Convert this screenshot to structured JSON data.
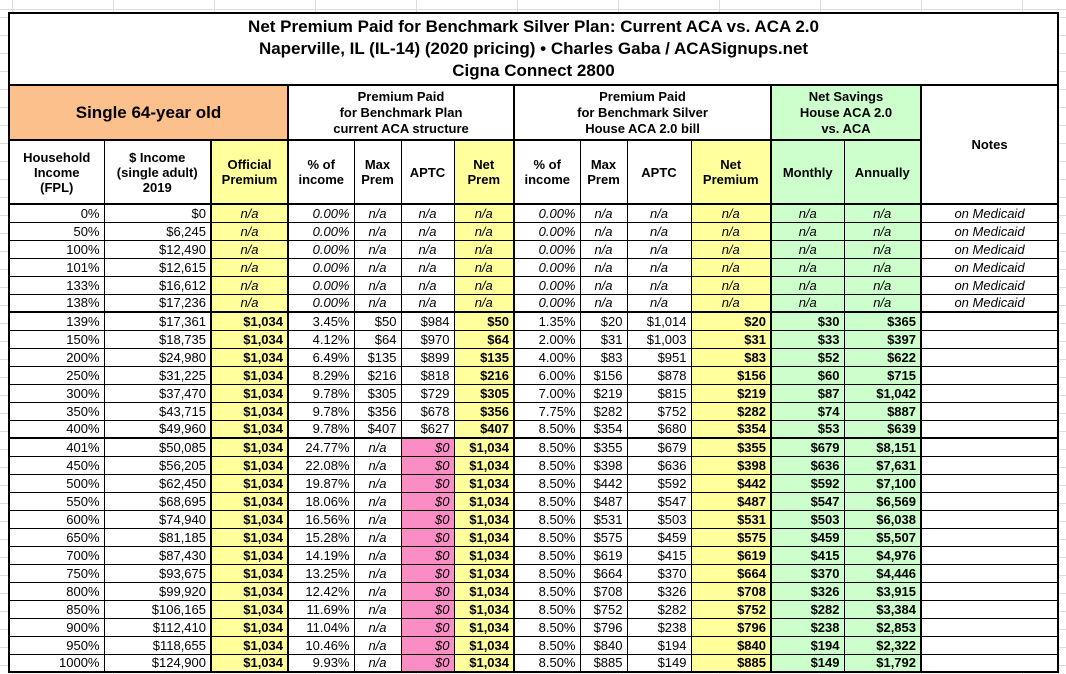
{
  "sheet": {
    "title_lines": [
      "Net Premium Paid for Benchmark Silver Plan: Current ACA vs. ACA 2.0",
      "Naperville, IL (IL-14) (2020 pricing) • Charles Gaba / ACASignups.net",
      "Cigna Connect 2800"
    ]
  },
  "groups": {
    "subject": "Single 64-year old",
    "current_aca": "Premium Paid\nfor Benchmark Plan\ncurrent ACA structure",
    "house_aca20": "Premium Paid\nfor Benchmark Silver\nHouse ACA 2.0 bill",
    "net_savings": "Net Savings\nHouse ACA 2.0\nvs. ACA"
  },
  "columns": {
    "fpl": "Household\nIncome\n(FPL)",
    "income": "$ Income\n(single adult)\n2019",
    "official": "Official\nPremium",
    "pct_income": "% of\nincome",
    "max_prem": "Max\nPrem",
    "aptc": "APTC",
    "net_prem": "Net\nPrem",
    "net_premium": "Net\nPremium",
    "monthly": "Monthly",
    "annually": "Annually",
    "notes": "Notes"
  },
  "rows": [
    {
      "fpl": "0%",
      "income": "$0",
      "official": "n/a",
      "c_pct": "0.00%",
      "c_max": "n/a",
      "c_aptc": "n/a",
      "c_net": "n/a",
      "h_pct": "0.00%",
      "h_max": "n/a",
      "h_aptc": "n/a",
      "h_net": "n/a",
      "s_m": "n/a",
      "s_a": "n/a",
      "note": "on Medicaid"
    },
    {
      "fpl": "50%",
      "income": "$6,245",
      "official": "n/a",
      "c_pct": "0.00%",
      "c_max": "n/a",
      "c_aptc": "n/a",
      "c_net": "n/a",
      "h_pct": "0.00%",
      "h_max": "n/a",
      "h_aptc": "n/a",
      "h_net": "n/a",
      "s_m": "n/a",
      "s_a": "n/a",
      "note": "on Medicaid"
    },
    {
      "fpl": "100%",
      "income": "$12,490",
      "official": "n/a",
      "c_pct": "0.00%",
      "c_max": "n/a",
      "c_aptc": "n/a",
      "c_net": "n/a",
      "h_pct": "0.00%",
      "h_max": "n/a",
      "h_aptc": "n/a",
      "h_net": "n/a",
      "s_m": "n/a",
      "s_a": "n/a",
      "note": "on Medicaid"
    },
    {
      "fpl": "101%",
      "income": "$12,615",
      "official": "n/a",
      "c_pct": "0.00%",
      "c_max": "n/a",
      "c_aptc": "n/a",
      "c_net": "n/a",
      "h_pct": "0.00%",
      "h_max": "n/a",
      "h_aptc": "n/a",
      "h_net": "n/a",
      "s_m": "n/a",
      "s_a": "n/a",
      "note": "on Medicaid"
    },
    {
      "fpl": "133%",
      "income": "$16,612",
      "official": "n/a",
      "c_pct": "0.00%",
      "c_max": "n/a",
      "c_aptc": "n/a",
      "c_net": "n/a",
      "h_pct": "0.00%",
      "h_max": "n/a",
      "h_aptc": "n/a",
      "h_net": "n/a",
      "s_m": "n/a",
      "s_a": "n/a",
      "note": "on Medicaid"
    },
    {
      "fpl": "138%",
      "income": "$17,236",
      "official": "n/a",
      "c_pct": "0.00%",
      "c_max": "n/a",
      "c_aptc": "n/a",
      "c_net": "n/a",
      "h_pct": "0.00%",
      "h_max": "n/a",
      "h_aptc": "n/a",
      "h_net": "n/a",
      "s_m": "n/a",
      "s_a": "n/a",
      "note": "on Medicaid"
    },
    {
      "fpl": "139%",
      "income": "$17,361",
      "official": "$1,034",
      "c_pct": "3.45%",
      "c_max": "$50",
      "c_aptc": "$984",
      "c_net": "$50",
      "h_pct": "1.35%",
      "h_max": "$20",
      "h_aptc": "$1,014",
      "h_net": "$20",
      "s_m": "$30",
      "s_a": "$365",
      "note": ""
    },
    {
      "fpl": "150%",
      "income": "$18,735",
      "official": "$1,034",
      "c_pct": "4.12%",
      "c_max": "$64",
      "c_aptc": "$970",
      "c_net": "$64",
      "h_pct": "2.00%",
      "h_max": "$31",
      "h_aptc": "$1,003",
      "h_net": "$31",
      "s_m": "$33",
      "s_a": "$397",
      "note": ""
    },
    {
      "fpl": "200%",
      "income": "$24,980",
      "official": "$1,034",
      "c_pct": "6.49%",
      "c_max": "$135",
      "c_aptc": "$899",
      "c_net": "$135",
      "h_pct": "4.00%",
      "h_max": "$83",
      "h_aptc": "$951",
      "h_net": "$83",
      "s_m": "$52",
      "s_a": "$622",
      "note": ""
    },
    {
      "fpl": "250%",
      "income": "$31,225",
      "official": "$1,034",
      "c_pct": "8.29%",
      "c_max": "$216",
      "c_aptc": "$818",
      "c_net": "$216",
      "h_pct": "6.00%",
      "h_max": "$156",
      "h_aptc": "$878",
      "h_net": "$156",
      "s_m": "$60",
      "s_a": "$715",
      "note": ""
    },
    {
      "fpl": "300%",
      "income": "$37,470",
      "official": "$1,034",
      "c_pct": "9.78%",
      "c_max": "$305",
      "c_aptc": "$729",
      "c_net": "$305",
      "h_pct": "7.00%",
      "h_max": "$219",
      "h_aptc": "$815",
      "h_net": "$219",
      "s_m": "$87",
      "s_a": "$1,042",
      "note": ""
    },
    {
      "fpl": "350%",
      "income": "$43,715",
      "official": "$1,034",
      "c_pct": "9.78%",
      "c_max": "$356",
      "c_aptc": "$678",
      "c_net": "$356",
      "h_pct": "7.75%",
      "h_max": "$282",
      "h_aptc": "$752",
      "h_net": "$282",
      "s_m": "$74",
      "s_a": "$887",
      "note": ""
    },
    {
      "fpl": "400%",
      "income": "$49,960",
      "official": "$1,034",
      "c_pct": "9.78%",
      "c_max": "$407",
      "c_aptc": "$627",
      "c_net": "$407",
      "h_pct": "8.50%",
      "h_max": "$354",
      "h_aptc": "$680",
      "h_net": "$354",
      "s_m": "$53",
      "s_a": "$639",
      "note": ""
    },
    {
      "fpl": "401%",
      "income": "$50,085",
      "official": "$1,034",
      "c_pct": "24.77%",
      "c_max": "n/a",
      "c_aptc": "$0",
      "c_net": "$1,034",
      "h_pct": "8.50%",
      "h_max": "$355",
      "h_aptc": "$679",
      "h_net": "$355",
      "s_m": "$679",
      "s_a": "$8,151",
      "note": ""
    },
    {
      "fpl": "450%",
      "income": "$56,205",
      "official": "$1,034",
      "c_pct": "22.08%",
      "c_max": "n/a",
      "c_aptc": "$0",
      "c_net": "$1,034",
      "h_pct": "8.50%",
      "h_max": "$398",
      "h_aptc": "$636",
      "h_net": "$398",
      "s_m": "$636",
      "s_a": "$7,631",
      "note": ""
    },
    {
      "fpl": "500%",
      "income": "$62,450",
      "official": "$1,034",
      "c_pct": "19.87%",
      "c_max": "n/a",
      "c_aptc": "$0",
      "c_net": "$1,034",
      "h_pct": "8.50%",
      "h_max": "$442",
      "h_aptc": "$592",
      "h_net": "$442",
      "s_m": "$592",
      "s_a": "$7,100",
      "note": ""
    },
    {
      "fpl": "550%",
      "income": "$68,695",
      "official": "$1,034",
      "c_pct": "18.06%",
      "c_max": "n/a",
      "c_aptc": "$0",
      "c_net": "$1,034",
      "h_pct": "8.50%",
      "h_max": "$487",
      "h_aptc": "$547",
      "h_net": "$487",
      "s_m": "$547",
      "s_a": "$6,569",
      "note": ""
    },
    {
      "fpl": "600%",
      "income": "$74,940",
      "official": "$1,034",
      "c_pct": "16.56%",
      "c_max": "n/a",
      "c_aptc": "$0",
      "c_net": "$1,034",
      "h_pct": "8.50%",
      "h_max": "$531",
      "h_aptc": "$503",
      "h_net": "$531",
      "s_m": "$503",
      "s_a": "$6,038",
      "note": ""
    },
    {
      "fpl": "650%",
      "income": "$81,185",
      "official": "$1,034",
      "c_pct": "15.28%",
      "c_max": "n/a",
      "c_aptc": "$0",
      "c_net": "$1,034",
      "h_pct": "8.50%",
      "h_max": "$575",
      "h_aptc": "$459",
      "h_net": "$575",
      "s_m": "$459",
      "s_a": "$5,507",
      "note": ""
    },
    {
      "fpl": "700%",
      "income": "$87,430",
      "official": "$1,034",
      "c_pct": "14.19%",
      "c_max": "n/a",
      "c_aptc": "$0",
      "c_net": "$1,034",
      "h_pct": "8.50%",
      "h_max": "$619",
      "h_aptc": "$415",
      "h_net": "$619",
      "s_m": "$415",
      "s_a": "$4,976",
      "note": ""
    },
    {
      "fpl": "750%",
      "income": "$93,675",
      "official": "$1,034",
      "c_pct": "13.25%",
      "c_max": "n/a",
      "c_aptc": "$0",
      "c_net": "$1,034",
      "h_pct": "8.50%",
      "h_max": "$664",
      "h_aptc": "$370",
      "h_net": "$664",
      "s_m": "$370",
      "s_a": "$4,446",
      "note": ""
    },
    {
      "fpl": "800%",
      "income": "$99,920",
      "official": "$1,034",
      "c_pct": "12.42%",
      "c_max": "n/a",
      "c_aptc": "$0",
      "c_net": "$1,034",
      "h_pct": "8.50%",
      "h_max": "$708",
      "h_aptc": "$326",
      "h_net": "$708",
      "s_m": "$326",
      "s_a": "$3,915",
      "note": ""
    },
    {
      "fpl": "850%",
      "income": "$106,165",
      "official": "$1,034",
      "c_pct": "11.69%",
      "c_max": "n/a",
      "c_aptc": "$0",
      "c_net": "$1,034",
      "h_pct": "8.50%",
      "h_max": "$752",
      "h_aptc": "$282",
      "h_net": "$752",
      "s_m": "$282",
      "s_a": "$3,384",
      "note": ""
    },
    {
      "fpl": "900%",
      "income": "$112,410",
      "official": "$1,034",
      "c_pct": "11.04%",
      "c_max": "n/a",
      "c_aptc": "$0",
      "c_net": "$1,034",
      "h_pct": "8.50%",
      "h_max": "$796",
      "h_aptc": "$238",
      "h_net": "$796",
      "s_m": "$238",
      "s_a": "$2,853",
      "note": ""
    },
    {
      "fpl": "950%",
      "income": "$118,655",
      "official": "$1,034",
      "c_pct": "10.46%",
      "c_max": "n/a",
      "c_aptc": "$0",
      "c_net": "$1,034",
      "h_pct": "8.50%",
      "h_max": "$840",
      "h_aptc": "$194",
      "h_net": "$840",
      "s_m": "$194",
      "s_a": "$2,322",
      "note": ""
    },
    {
      "fpl": "1000%",
      "income": "$124,900",
      "official": "$1,034",
      "c_pct": "9.93%",
      "c_max": "n/a",
      "c_aptc": "$0",
      "c_net": "$1,034",
      "h_pct": "8.50%",
      "h_max": "$885",
      "h_aptc": "$149",
      "h_net": "$885",
      "s_m": "$149",
      "s_a": "$1,792",
      "note": ""
    }
  ],
  "colors": {
    "orange": "#FBC08C",
    "yellow": "#FFFF9C",
    "green": "#CCFFCC",
    "pink": "#FA8EC4",
    "border": "#000000",
    "gridline": "#DCDCDC"
  }
}
